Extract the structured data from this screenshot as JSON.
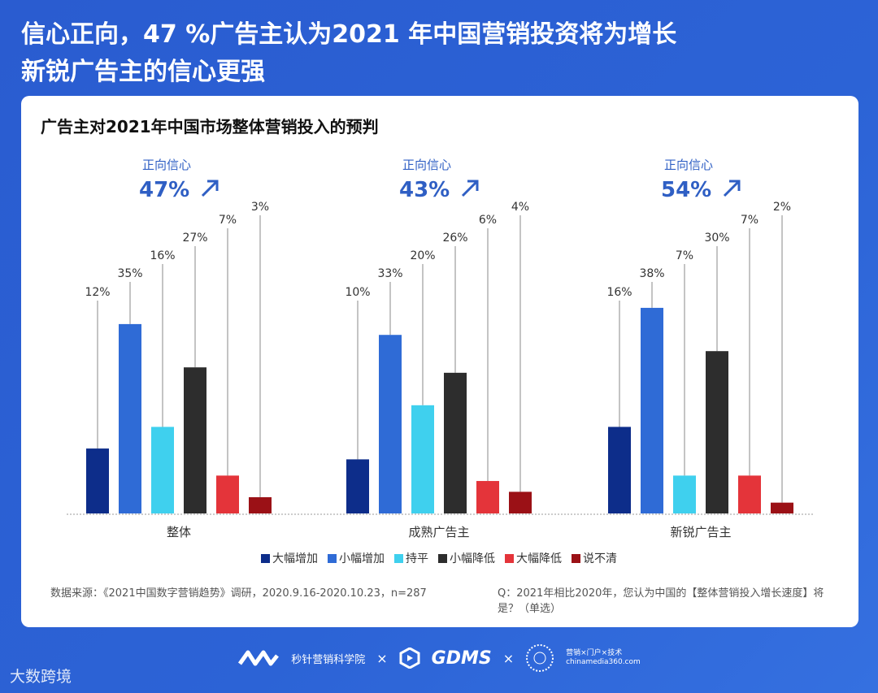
{
  "header": {
    "title_line1": "信心正向，47 %广告主认为2021 年中国营销投资将为增长",
    "title_line2": "新锐广告主的信心更强"
  },
  "chart_data": {
    "type": "bar",
    "title": "广告主对2021年中国市场整体营销投入的预判",
    "categories": [
      "整体",
      "成熟广告主",
      "新锐广告主"
    ],
    "series": [
      {
        "name": "大幅增加",
        "color": "#0d2d8a",
        "values": [
          12,
          10,
          16
        ]
      },
      {
        "name": "小幅增加",
        "color": "#2f6bd6",
        "values": [
          35,
          33,
          38
        ]
      },
      {
        "name": "持平",
        "color": "#3fd0ee",
        "values": [
          16,
          20,
          7
        ]
      },
      {
        "name": "小幅降低",
        "color": "#2d2d2d",
        "values": [
          27,
          26,
          30
        ]
      },
      {
        "name": "大幅降低",
        "color": "#e4343a",
        "values": [
          7,
          6,
          7
        ]
      },
      {
        "name": "说不清",
        "color": "#9b1116",
        "values": [
          3,
          4,
          2
        ]
      }
    ],
    "unit": "%",
    "annotations": [
      {
        "label": "正向信心",
        "value": "47%"
      },
      {
        "label": "正向信心",
        "value": "43%"
      },
      {
        "label": "正向信心",
        "value": "54%"
      }
    ],
    "legend_position": "bottom",
    "grid": false
  },
  "notes": {
    "source": "数据来源：《2021中国数字营销趋势》调研，2020.9.16-2020.10.23，n=287",
    "question": "Q：2021年相比2020年，您认为中国的【整体营销投入增长速度】将是？（单选）"
  },
  "footer": {
    "brand1": "秒针营销科学院",
    "sep": "×",
    "brand2": "GDMS",
    "brand3_line1": "营销×门户×技术",
    "brand3_line2": "chinamedia360.com"
  },
  "watermark": "大数跨境"
}
